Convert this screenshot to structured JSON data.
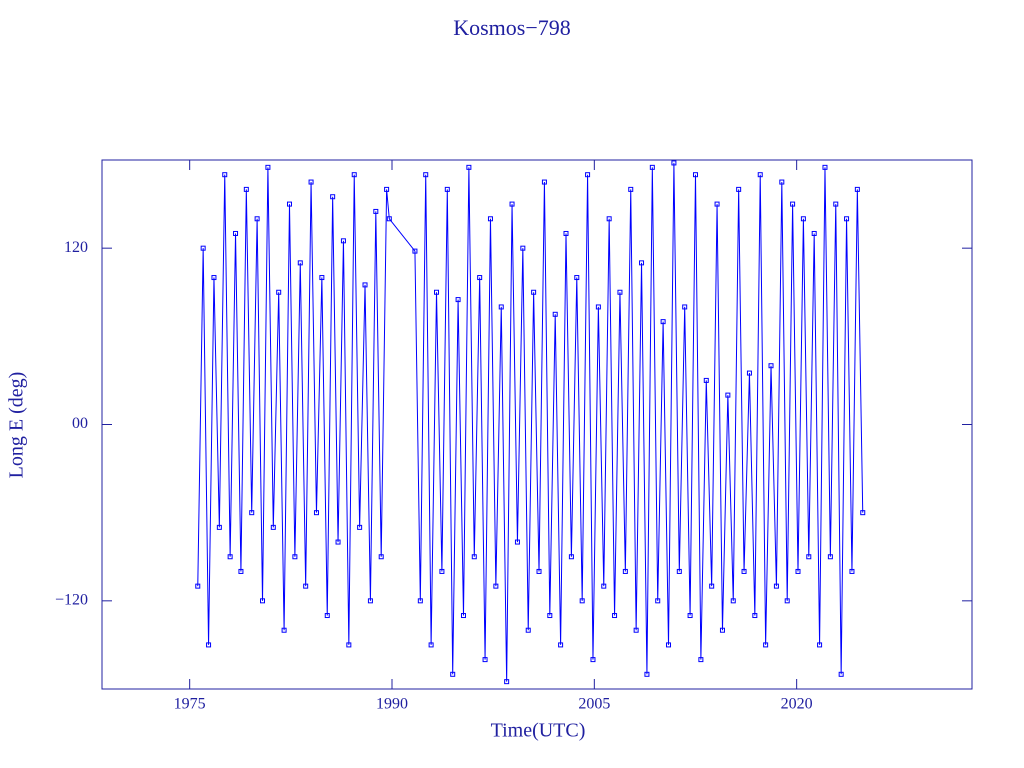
{
  "chart_data": {
    "type": "line",
    "title": "Kosmos−798",
    "x_label": "Time(UTC)",
    "y_label": "Long E (deg)",
    "xlim": [
      1968.5,
      2033
    ],
    "ylim": [
      -180,
      180
    ],
    "xticks": [
      1975,
      1990,
      2005,
      2020
    ],
    "yticks": [
      120,
      {
        "value": 0,
        "label": "00"
      },
      {
        "value": -120,
        "label": "−120"
      }
    ],
    "axis_color": "#2020a0",
    "series": [
      {
        "color": "#0000ff",
        "x": [
          1975.6,
          1976.0,
          1976.4,
          1976.8,
          1977.2,
          1977.6,
          1978.0,
          1978.4,
          1978.8,
          1979.2,
          1979.6,
          1980.0,
          1980.4,
          1980.8,
          1981.2,
          1981.6,
          1982.0,
          1982.4,
          1982.8,
          1983.2,
          1983.6,
          1984.0,
          1984.4,
          1984.8,
          1985.2,
          1985.6,
          1986.0,
          1986.4,
          1986.8,
          1987.2,
          1987.6,
          1988.0,
          1988.4,
          1988.8,
          1989.2,
          1989.6,
          1989.8,
          1991.7,
          1992.1,
          1992.5,
          1992.9,
          1993.3,
          1993.7,
          1994.1,
          1994.5,
          1994.9,
          1995.3,
          1995.7,
          1996.1,
          1996.5,
          1996.9,
          1997.3,
          1997.7,
          1998.1,
          1998.5,
          1998.9,
          1999.3,
          1999.7,
          2000.1,
          2000.5,
          2000.9,
          2001.3,
          2001.7,
          2002.1,
          2002.5,
          2002.9,
          2003.3,
          2003.7,
          2004.1,
          2004.5,
          2004.9,
          2005.3,
          2005.7,
          2006.1,
          2006.5,
          2006.9,
          2007.3,
          2007.7,
          2008.1,
          2008.5,
          2008.9,
          2009.3,
          2009.7,
          2010.1,
          2010.5,
          2010.9,
          2011.3,
          2011.7,
          2012.1,
          2012.5,
          2012.9,
          2013.3,
          2013.7,
          2014.1,
          2014.5,
          2014.9,
          2015.3,
          2015.7,
          2016.1,
          2016.5,
          2016.9,
          2017.3,
          2017.7,
          2018.1,
          2018.5,
          2018.9,
          2019.3,
          2019.7,
          2020.1,
          2020.5,
          2020.9,
          2021.3,
          2021.7,
          2022.1,
          2022.5,
          2022.9,
          2023.3,
          2023.7,
          2024.1,
          2024.5,
          2024.9
        ],
        "values": [
          -110,
          120,
          -150,
          100,
          -70,
          170,
          -90,
          130,
          -100,
          160,
          -60,
          140,
          -120,
          175,
          -70,
          90,
          -140,
          150,
          -90,
          110,
          -110,
          165,
          -60,
          100,
          -130,
          155,
          -80,
          125,
          -150,
          170,
          -70,
          95,
          -120,
          145,
          -90,
          160,
          140,
          118,
          -120,
          170,
          -150,
          90,
          -100,
          160,
          -170,
          85,
          -130,
          175,
          -90,
          100,
          -160,
          140,
          -110,
          80,
          -175,
          150,
          -80,
          120,
          -140,
          90,
          -100,
          165,
          -130,
          75,
          -150,
          130,
          -90,
          100,
          -120,
          170,
          -160,
          80,
          -110,
          140,
          -130,
          90,
          -100,
          160,
          -140,
          110,
          -170,
          175,
          -120,
          70,
          -150,
          178,
          -100,
          80,
          -130,
          170,
          -160,
          30,
          -110,
          150,
          -140,
          20,
          -120,
          160,
          -100,
          35,
          -130,
          170,
          -150,
          40,
          -110,
          165,
          -120,
          150,
          -100,
          140,
          -90,
          130,
          -150,
          175,
          -90,
          150,
          -170,
          140,
          -100,
          160,
          -60
        ]
      }
    ]
  }
}
